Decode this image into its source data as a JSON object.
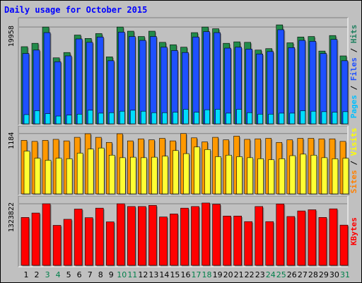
{
  "chart_data": {
    "type": "bar",
    "title": "Daily usage for October 2015",
    "title_color": "#0000ff",
    "categories": [
      "1",
      "2",
      "3",
      "4",
      "5",
      "6",
      "7",
      "8",
      "9",
      "10",
      "11",
      "12",
      "13",
      "14",
      "15",
      "16",
      "17",
      "18",
      "19",
      "20",
      "21",
      "22",
      "23",
      "24",
      "25",
      "26",
      "27",
      "28",
      "29",
      "30",
      "31"
    ],
    "weekend_days": [
      3,
      4,
      10,
      11,
      17,
      18,
      24,
      25,
      31
    ],
    "weekend_color": "#00804a",
    "weekday_color": "#000000",
    "grid": true,
    "panels": [
      {
        "id": "hits",
        "max_label": "19958",
        "ylim": [
          0,
          21000
        ],
        "right_label": [
          {
            "text": "Pages",
            "color": "#00bfff"
          },
          {
            "text": " / ",
            "color": "#000000"
          },
          {
            "text": "Files",
            "color": "#2050ff"
          },
          {
            "text": " / ",
            "color": "#000000"
          },
          {
            "text": "Hits",
            "color": "#208060"
          }
        ],
        "series": [
          {
            "name": "Hits",
            "color": "#228b4a",
            "values": [
              15900,
              16600,
              19958,
              13600,
              14700,
              18300,
              17600,
              18600,
              13800,
              19958,
              19100,
              18000,
              19100,
              16800,
              16300,
              15800,
              18800,
              19958,
              19600,
              16600,
              16900,
              16800,
              15200,
              15500,
              20400,
              16700,
              17900,
              18000,
              15000,
              18200,
              14000
            ]
          },
          {
            "name": "Files",
            "color": "#1e50ff",
            "values": [
              14500,
              15200,
              18800,
              12800,
              14000,
              17500,
              16800,
              17900,
              13000,
              18900,
              18000,
              17200,
              18000,
              15800,
              15100,
              14700,
              17900,
              19000,
              18800,
              15600,
              15800,
              15400,
              14400,
              14900,
              19400,
              15700,
              17200,
              17000,
              14500,
              17400,
              13000
            ]
          },
          {
            "name": "Pages",
            "color": "#00ddff",
            "values": [
              1900,
              2700,
              2100,
              1600,
              1800,
              2000,
              2800,
              2200,
              2300,
              2600,
              2800,
              2600,
              2300,
              2300,
              2400,
              3000,
              2400,
              2900,
              3000,
              2200,
              3000,
              2300,
              2000,
              2000,
              2200,
              2200,
              2700,
              2600,
              2500,
              2400,
              2500
            ]
          }
        ]
      },
      {
        "id": "visits",
        "max_label": "1184",
        "ylim": [
          0,
          1250
        ],
        "right_label": [
          {
            "text": "Sites",
            "color": "#ff8000"
          },
          {
            "text": " / ",
            "color": "#000000"
          },
          {
            "text": "Visits",
            "color": "#ffff00"
          }
        ],
        "series": [
          {
            "name": "Visits",
            "color": "#ff9900",
            "values": [
              1050,
              1030,
              1050,
              1070,
              1040,
              1110,
              1180,
              1110,
              1010,
              1180,
              1040,
              1080,
              1060,
              1090,
              1040,
              1184,
              1100,
              1020,
              1110,
              1060,
              1134,
              1070,
              1080,
              1090,
              1010,
              1060,
              1090,
              1090,
              1080,
              1080,
              1030
            ]
          },
          {
            "name": "Sites",
            "color": "#ffff33",
            "values": [
              840,
              700,
              660,
              700,
              690,
              800,
              880,
              900,
              760,
              710,
              720,
              710,
              720,
              740,
              850,
              790,
              920,
              870,
              730,
              760,
              730,
              710,
              690,
              670,
              690,
              750,
              780,
              760,
              710,
              690,
              700
            ]
          }
        ]
      },
      {
        "id": "kbytes",
        "max_label": "1323822",
        "ylim": [
          0,
          1400000
        ],
        "right_label": [
          {
            "text": "KBytes",
            "color": "#ff0000"
          }
        ],
        "series": [
          {
            "name": "KBytes",
            "color": "#ff0000",
            "values": [
              1030000,
              1125000,
              1323822,
              860000,
              990000,
              1210000,
              1025000,
              1230000,
              935000,
              1323822,
              1265000,
              1265000,
              1289000,
              1040000,
              1105000,
              1230000,
              1265000,
              1340000,
              1315000,
              1060000,
              1060000,
              940000,
              1265000,
              940000,
              1320000,
              1050000,
              1170000,
              1195000,
              1030000,
              1215000,
              865000
            ]
          }
        ]
      }
    ]
  }
}
